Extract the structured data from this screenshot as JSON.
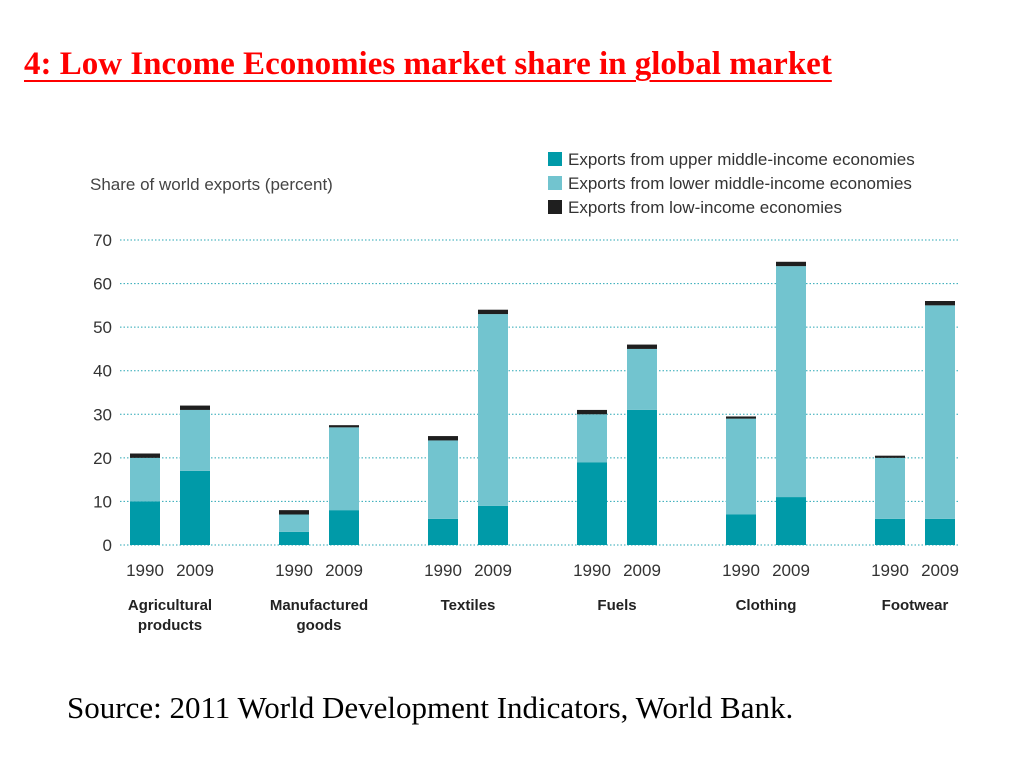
{
  "slide": {
    "title": "4: Low Income Economies market share in global market",
    "source": "Source: 2011 World Development Indicators, World Bank."
  },
  "chart_data": {
    "type": "bar",
    "stacked": true,
    "ylabel": "Share of world exports (percent)",
    "ylim": [
      0,
      70
    ],
    "yticks": [
      "0",
      "10",
      "20",
      "30",
      "40",
      "50",
      "60",
      "70"
    ],
    "grid": true,
    "legend_position": "top-right",
    "groups": [
      {
        "label": [
          "Agricultural",
          "products"
        ],
        "years": [
          "1990",
          "2009"
        ]
      },
      {
        "label": [
          "Manufactured",
          "goods"
        ],
        "years": [
          "1990",
          "2009"
        ]
      },
      {
        "label": [
          "Textiles"
        ],
        "years": [
          "1990",
          "2009"
        ]
      },
      {
        "label": [
          "Fuels"
        ],
        "years": [
          "1990",
          "2009"
        ]
      },
      {
        "label": [
          "Clothing"
        ],
        "years": [
          "1990",
          "2009"
        ]
      },
      {
        "label": [
          "Footwear"
        ],
        "years": [
          "1990",
          "2009"
        ]
      }
    ],
    "series": [
      {
        "name": "Exports from upper middle-income economies",
        "color": "#009aa8",
        "values": [
          10,
          17,
          3,
          8,
          6,
          9,
          19,
          31,
          7,
          11,
          6,
          6
        ]
      },
      {
        "name": "Exports from lower middle-income economies",
        "color": "#72c4cf",
        "values": [
          10,
          14,
          4,
          19,
          18,
          44,
          11,
          14,
          22,
          53,
          14,
          49
        ]
      },
      {
        "name": "Exports from low-income economies",
        "color": "#1f1f1f",
        "values": [
          1,
          1,
          1,
          0.5,
          1,
          1,
          1,
          1,
          0.5,
          1,
          0.5,
          1
        ]
      }
    ]
  }
}
